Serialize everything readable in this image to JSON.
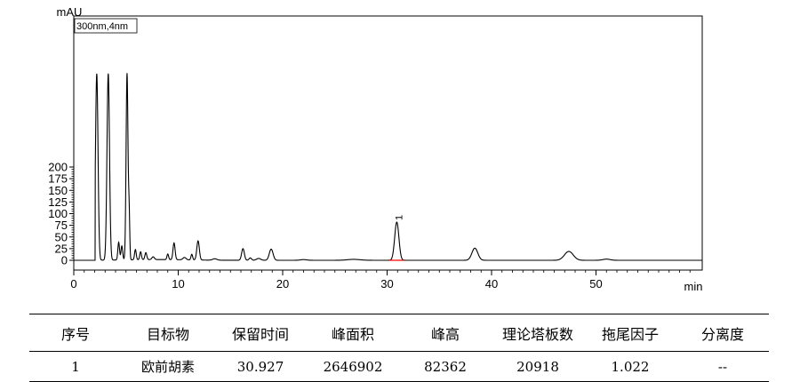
{
  "chart_data": {
    "type": "line",
    "ylabel": "mAU",
    "xlabel": "min",
    "detector_label": "300nm,4nm",
    "xlim": [
      0,
      60
    ],
    "ylim": [
      -5,
      210
    ],
    "x_ticks": [
      0,
      10,
      20,
      30,
      40,
      50
    ],
    "y_ticks": [
      0,
      25,
      50,
      75,
      100,
      125,
      150,
      175,
      200
    ],
    "grid": false,
    "peaks": [
      {
        "rt": 2.2,
        "height": 400,
        "width": 0.12
      },
      {
        "rt": 3.3,
        "height": 400,
        "width": 0.12
      },
      {
        "rt": 4.3,
        "height": 38,
        "width": 0.08
      },
      {
        "rt": 4.6,
        "height": 30,
        "width": 0.08
      },
      {
        "rt": 5.1,
        "height": 400,
        "width": 0.09
      },
      {
        "rt": 5.3,
        "height": 95,
        "width": 0.06
      },
      {
        "rt": 5.9,
        "height": 22,
        "width": 0.08
      },
      {
        "rt": 6.4,
        "height": 17,
        "width": 0.08
      },
      {
        "rt": 6.9,
        "height": 15,
        "width": 0.09
      },
      {
        "rt": 7.6,
        "height": 6,
        "width": 0.12
      },
      {
        "rt": 9.0,
        "height": 12,
        "width": 0.08
      },
      {
        "rt": 9.6,
        "height": 36,
        "width": 0.1
      },
      {
        "rt": 10.6,
        "height": 5,
        "width": 0.15
      },
      {
        "rt": 11.3,
        "height": 12,
        "width": 0.08
      },
      {
        "rt": 11.9,
        "height": 41,
        "width": 0.12
      },
      {
        "rt": 13.5,
        "height": 3,
        "width": 0.2
      },
      {
        "rt": 16.2,
        "height": 25,
        "width": 0.13
      },
      {
        "rt": 16.9,
        "height": 5,
        "width": 0.12
      },
      {
        "rt": 17.7,
        "height": 4,
        "width": 0.2
      },
      {
        "rt": 18.9,
        "height": 24,
        "width": 0.18
      },
      {
        "rt": 22.0,
        "height": 1.5,
        "width": 0.3
      },
      {
        "rt": 26.8,
        "height": 2,
        "width": 0.6
      },
      {
        "rt": 30.927,
        "height": 82,
        "width": 0.2
      },
      {
        "rt": 38.4,
        "height": 26,
        "width": 0.28
      },
      {
        "rt": 47.4,
        "height": 19,
        "width": 0.42
      },
      {
        "rt": 51.0,
        "height": 2.5,
        "width": 0.35
      }
    ],
    "annotations": [
      {
        "rt": 30.927,
        "label": "1"
      }
    ]
  },
  "table": {
    "headers": [
      "序号",
      "目标物",
      "保留时间",
      "峰面积",
      "峰高",
      "理论塔板数",
      "拖尾因子",
      "分离度"
    ],
    "rows": [
      [
        "1",
        "欧前胡素",
        "30.927",
        "2646902",
        "82362",
        "20918",
        "1.022",
        "--"
      ]
    ]
  }
}
